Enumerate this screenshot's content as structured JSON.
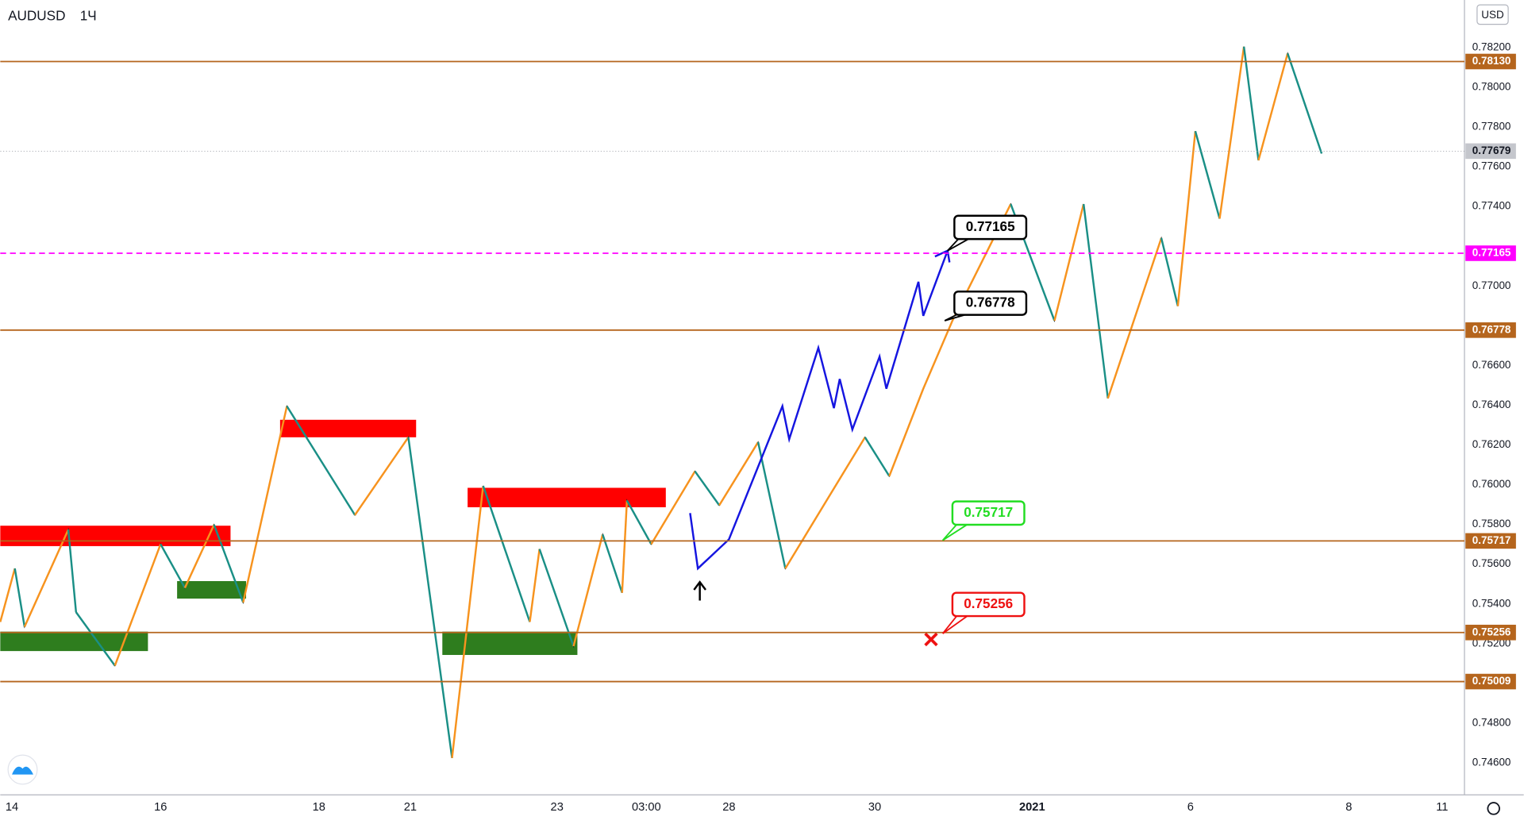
{
  "header": {
    "symbol": "AUDUSD",
    "interval": "1Ч",
    "currency": "USD"
  },
  "price_axis": [
    "0.78200",
    "0.78000",
    "0.77800",
    "0.77600",
    "0.77400",
    "0.77000",
    "0.76600",
    "0.76400",
    "0.76200",
    "0.76000",
    "0.75800",
    "0.75600",
    "0.75400",
    "0.75200",
    "0.74800",
    "0.74600"
  ],
  "levels": [
    {
      "label": "0.78130",
      "kind": "level"
    },
    {
      "label": "0.77679",
      "kind": "current"
    },
    {
      "label": "0.77165",
      "kind": "target"
    },
    {
      "label": "0.76778",
      "kind": "level"
    },
    {
      "label": "0.75717",
      "kind": "level"
    },
    {
      "label": "0.75256",
      "kind": "level"
    },
    {
      "label": "0.75009",
      "kind": "level"
    }
  ],
  "callouts": [
    {
      "label": "0.77165",
      "color": "#000000"
    },
    {
      "label": "0.76778",
      "color": "#000000"
    },
    {
      "label": "0.75717",
      "color": "#22dd22"
    },
    {
      "label": "0.75256",
      "color": "#ee1111"
    }
  ],
  "time_axis": [
    {
      "label": "14",
      "bold": false
    },
    {
      "label": "16",
      "bold": false
    },
    {
      "label": "18",
      "bold": false
    },
    {
      "label": "21",
      "bold": false
    },
    {
      "label": "23",
      "bold": false
    },
    {
      "label": "03:00",
      "bold": false
    },
    {
      "label": "28",
      "bold": false
    },
    {
      "label": "30",
      "bold": false
    },
    {
      "label": "2021",
      "bold": true
    },
    {
      "label": "6",
      "bold": false
    },
    {
      "label": "8",
      "bold": false
    },
    {
      "label": "11",
      "bold": false
    }
  ]
}
